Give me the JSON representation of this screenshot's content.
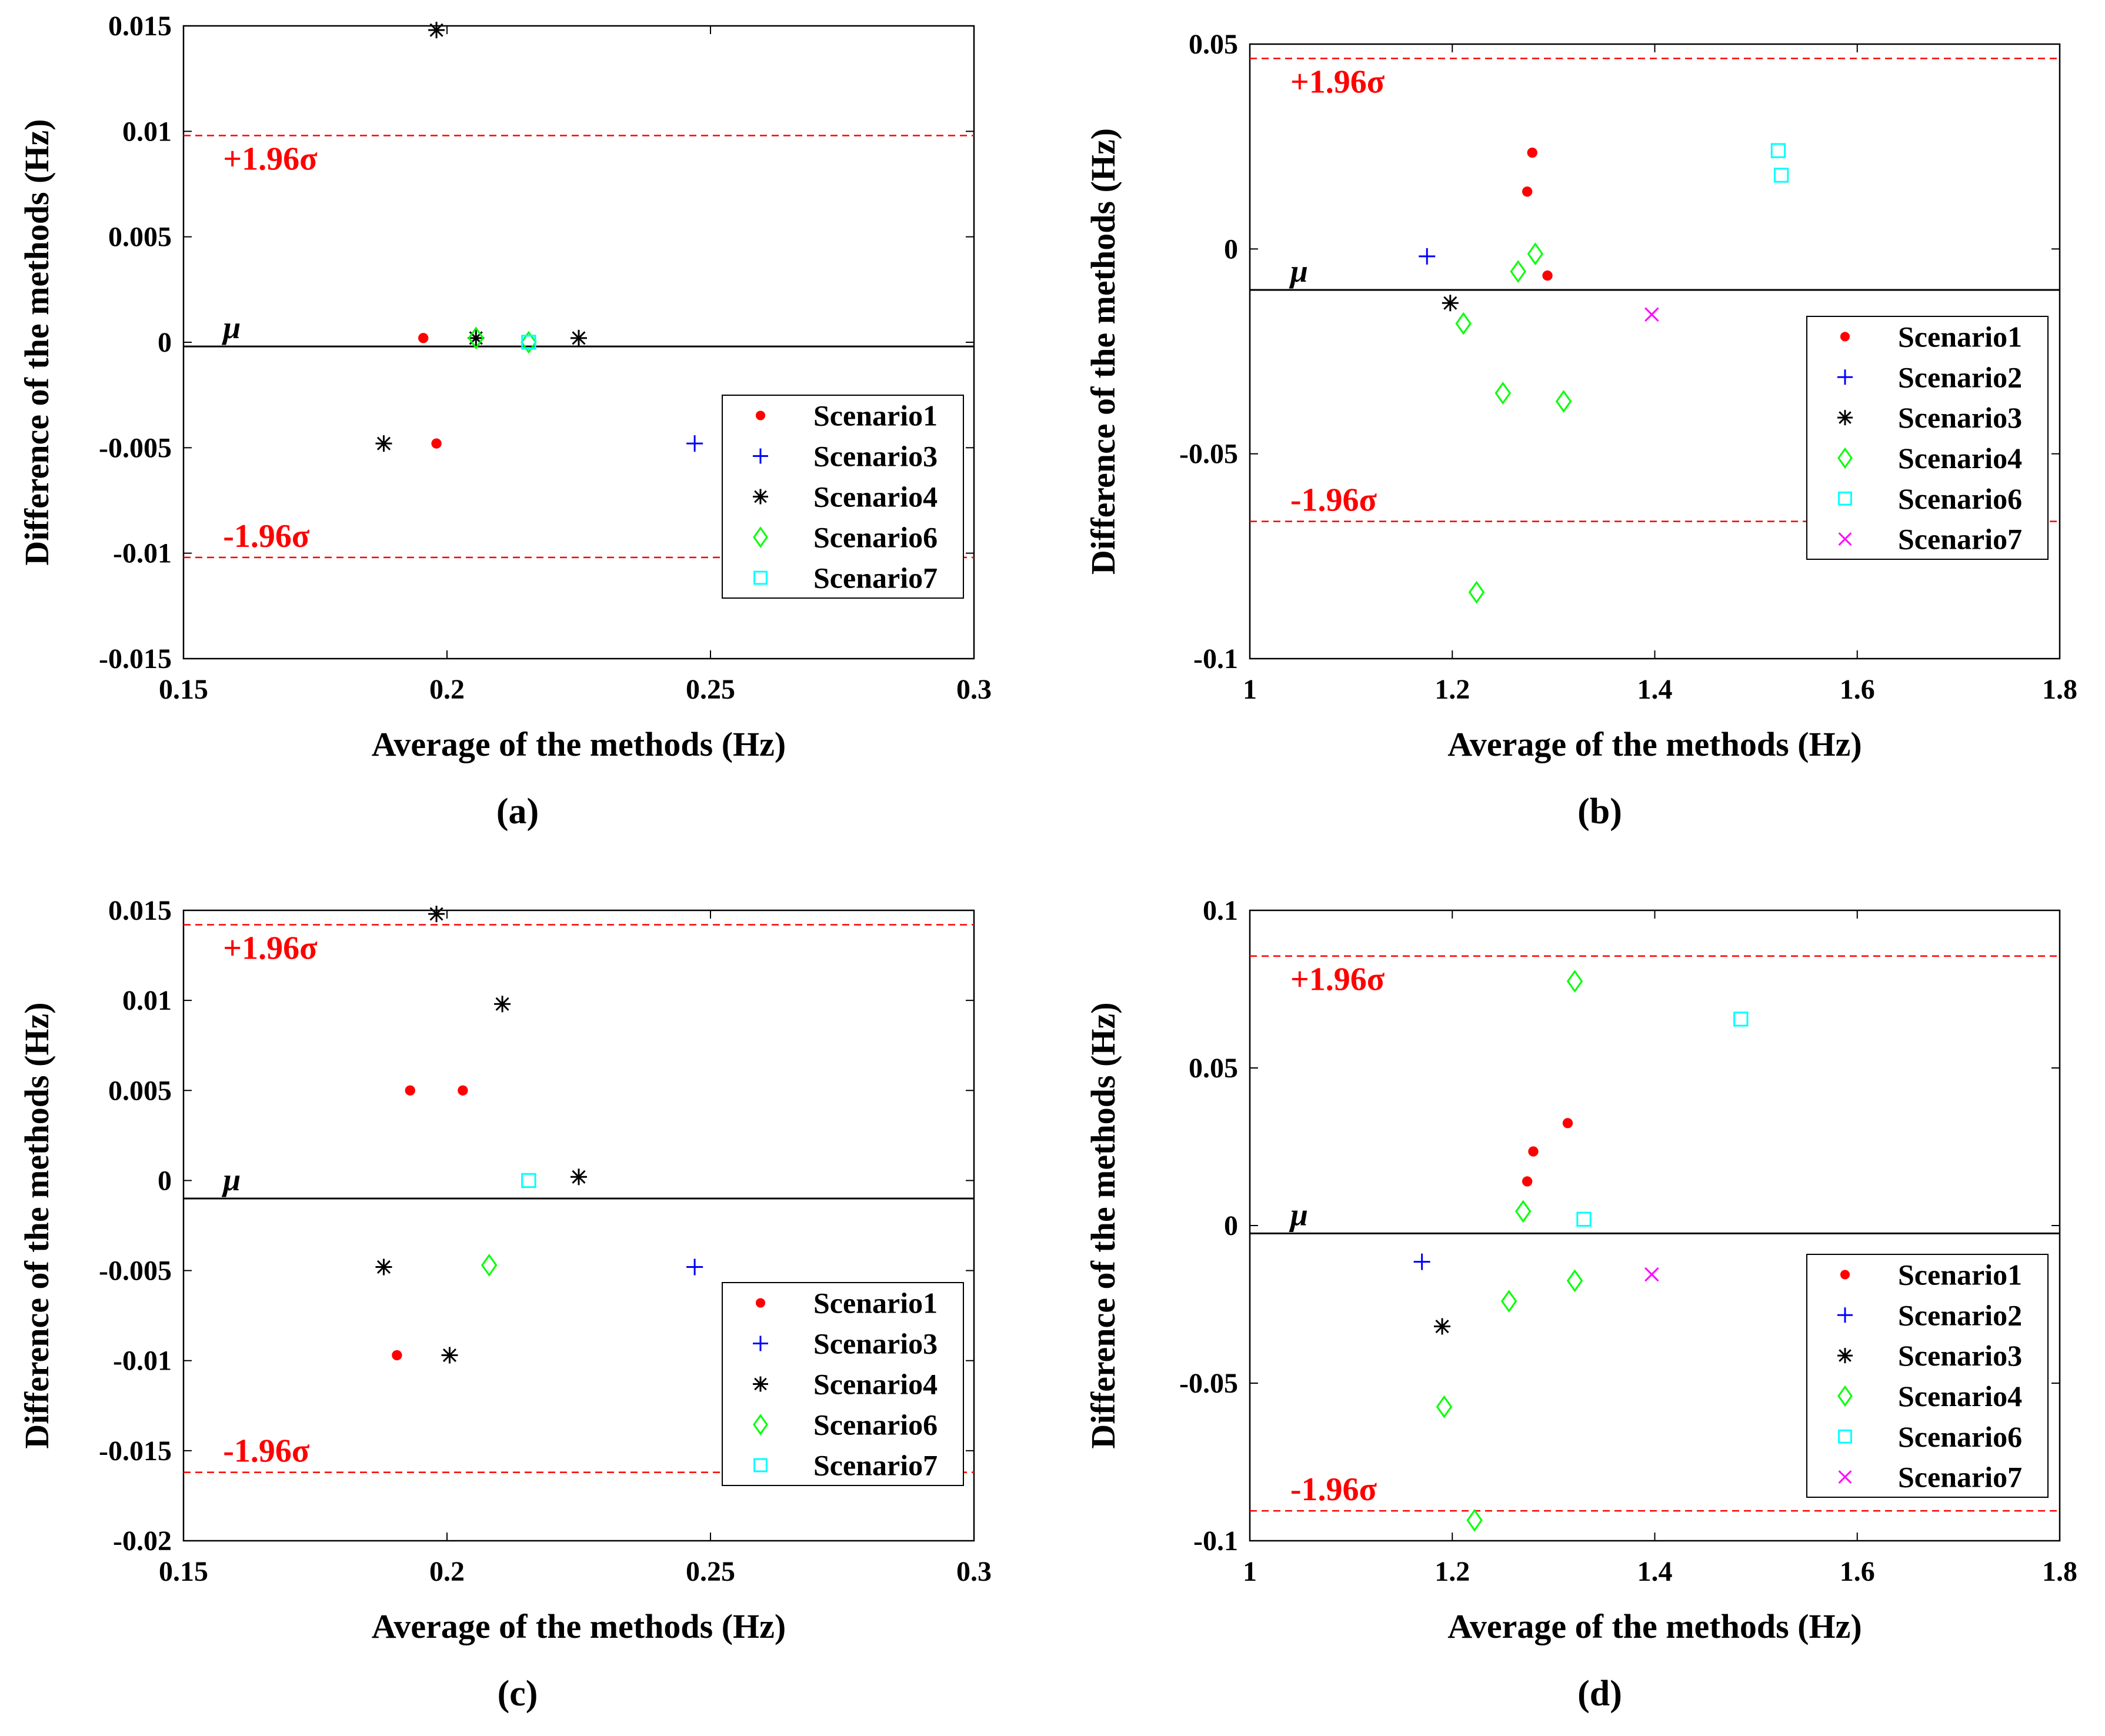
{
  "chart_data": [
    {
      "panel": "(a)",
      "type": "scatter",
      "title": "",
      "xlabel": "Average of the methods (Hz)",
      "ylabel": "Difference of the methods (Hz)",
      "xlim": [
        0.15,
        0.3
      ],
      "ylim": [
        -0.015,
        0.015
      ],
      "xticks": [
        0.15,
        0.2,
        0.25,
        0.3
      ],
      "xtick_labels": [
        "0.15",
        "0.2",
        "0.25",
        "0.3"
      ],
      "yticks": [
        -0.015,
        -0.01,
        -0.005,
        0,
        0.005,
        0.01,
        0.015
      ],
      "ytick_labels": [
        "-0.015",
        "-0.01",
        "-0.005",
        "0",
        "0.005",
        "0.01",
        "0.015"
      ],
      "grid": false,
      "legend_position": "lower-right",
      "mean_label": "μ",
      "upper_label": "+1.96σ",
      "lower_label": "-1.96σ",
      "mean": -0.0002,
      "upper": 0.0098,
      "lower": -0.0102,
      "series": [
        {
          "name": "Scenario1",
          "marker": "dot",
          "color": "#ff0000",
          "x": [
            0.1955,
            0.198
          ],
          "y": [
            0.0002,
            -0.0048
          ]
        },
        {
          "name": "Scenario3",
          "marker": "plus",
          "color": "#0000ff",
          "x": [
            0.247
          ],
          "y": [
            -0.0048
          ]
        },
        {
          "name": "Scenario4",
          "marker": "star",
          "color": "#000000",
          "x": [
            0.198,
            0.188,
            0.2055,
            0.225
          ],
          "y": [
            0.0148,
            -0.0048,
            0.0002,
            0.0002
          ]
        },
        {
          "name": "Scenario6",
          "marker": "diamond",
          "color": "#00ff00",
          "x": [
            0.2055,
            0.2155
          ],
          "y": [
            0.0002,
            0.0
          ]
        },
        {
          "name": "Scenario7",
          "marker": "square",
          "color": "#00ffff",
          "x": [
            0.2155
          ],
          "y": [
            0.0
          ]
        }
      ]
    },
    {
      "panel": "(b)",
      "type": "scatter",
      "title": "",
      "xlabel": "Average of the methods (Hz)",
      "ylabel": "Difference of the methods (Hz)",
      "xlim": [
        1.0,
        1.8
      ],
      "ylim": [
        -0.1,
        0.05
      ],
      "xticks": [
        1.0,
        1.2,
        1.4,
        1.6,
        1.8
      ],
      "xtick_labels": [
        "1",
        "1.2",
        "1.4",
        "1.6",
        "1.8"
      ],
      "yticks": [
        -0.1,
        -0.05,
        0,
        0.05
      ],
      "ytick_labels": [
        "-0.1",
        "-0.05",
        "0",
        "0.05"
      ],
      "grid": false,
      "legend_position": "middle-right",
      "mean_label": "μ",
      "upper_label": "+1.96σ",
      "lower_label": "-1.96σ",
      "mean": -0.01,
      "upper": 0.0465,
      "lower": -0.0665,
      "series": [
        {
          "name": "Scenario1",
          "marker": "dot",
          "color": "#ff0000",
          "x": [
            1.279,
            1.274,
            1.294
          ],
          "y": [
            0.0235,
            0.014,
            -0.0065
          ]
        },
        {
          "name": "Scenario2",
          "marker": "plus",
          "color": "#0000ff",
          "x": [
            1.175
          ],
          "y": [
            -0.0018
          ]
        },
        {
          "name": "Scenario3",
          "marker": "star",
          "color": "#000000",
          "x": [
            1.198
          ],
          "y": [
            -0.0132
          ]
        },
        {
          "name": "Scenario4",
          "marker": "diamond",
          "color": "#00ff00",
          "x": [
            1.282,
            1.265,
            1.211,
            1.25,
            1.31,
            1.224
          ],
          "y": [
            -0.0012,
            -0.0055,
            -0.0182,
            -0.0352,
            -0.0372,
            -0.0838
          ]
        },
        {
          "name": "Scenario6",
          "marker": "square",
          "color": "#00ffff",
          "x": [
            1.522,
            1.525
          ],
          "y": [
            0.024,
            0.018
          ]
        },
        {
          "name": "Scenario7",
          "marker": "cross",
          "color": "#ff00ff",
          "x": [
            1.397
          ],
          "y": [
            -0.016
          ]
        }
      ]
    },
    {
      "panel": "(c)",
      "type": "scatter",
      "title": "",
      "xlabel": "Average of the methods (Hz)",
      "ylabel": "Difference of the methods (Hz)",
      "xlim": [
        0.15,
        0.3
      ],
      "ylim": [
        -0.02,
        0.015
      ],
      "xticks": [
        0.15,
        0.2,
        0.25,
        0.3
      ],
      "xtick_labels": [
        "0.15",
        "0.2",
        "0.25",
        "0.3"
      ],
      "yticks": [
        -0.02,
        -0.015,
        -0.01,
        -0.005,
        0,
        0.005,
        0.01,
        0.015
      ],
      "ytick_labels": [
        "-0.02",
        "-0.015",
        "-0.01",
        "-0.005",
        "0",
        "0.005",
        "0.01",
        "0.015"
      ],
      "grid": false,
      "legend_position": "lower-right",
      "mean_label": "μ",
      "upper_label": "+1.96σ",
      "lower_label": "-1.96σ",
      "mean": -0.001,
      "upper": 0.0142,
      "lower": -0.0162,
      "series": [
        {
          "name": "Scenario1",
          "marker": "dot",
          "color": "#ff0000",
          "x": [
            0.193,
            0.203,
            0.1905
          ],
          "y": [
            0.005,
            0.005,
            -0.0097
          ]
        },
        {
          "name": "Scenario3",
          "marker": "plus",
          "color": "#0000ff",
          "x": [
            0.247
          ],
          "y": [
            -0.0048
          ]
        },
        {
          "name": "Scenario4",
          "marker": "star",
          "color": "#000000",
          "x": [
            0.198,
            0.2105,
            0.225,
            0.188,
            0.2005
          ],
          "y": [
            0.0148,
            0.0098,
            0.0002,
            -0.0048,
            -0.0097
          ]
        },
        {
          "name": "Scenario6",
          "marker": "diamond",
          "color": "#00ff00",
          "x": [
            0.208
          ],
          "y": [
            -0.0047
          ]
        },
        {
          "name": "Scenario7",
          "marker": "square",
          "color": "#00ffff",
          "x": [
            0.2155
          ],
          "y": [
            0.0
          ]
        }
      ]
    },
    {
      "panel": "(d)",
      "type": "scatter",
      "title": "",
      "xlabel": "Average of the methods (Hz)",
      "ylabel": "Difference of the methods (Hz)",
      "xlim": [
        1.0,
        1.8
      ],
      "ylim": [
        -0.1,
        0.1
      ],
      "xticks": [
        1.0,
        1.2,
        1.4,
        1.6,
        1.8
      ],
      "xtick_labels": [
        "1",
        "1.2",
        "1.4",
        "1.6",
        "1.8"
      ],
      "yticks": [
        -0.1,
        -0.05,
        0,
        0.05,
        0.1
      ],
      "ytick_labels": [
        "-0.1",
        "-0.05",
        "0",
        "0.05",
        "0.1"
      ],
      "grid": false,
      "legend_position": "lower-right",
      "mean_label": "μ",
      "upper_label": "+1.96σ",
      "lower_label": "-1.96σ",
      "mean": -0.0025,
      "upper": 0.0855,
      "lower": -0.0905,
      "series": [
        {
          "name": "Scenario1",
          "marker": "dot",
          "color": "#ff0000",
          "x": [
            1.314,
            1.28,
            1.274
          ],
          "y": [
            0.0325,
            0.0235,
            0.014
          ]
        },
        {
          "name": "Scenario2",
          "marker": "plus",
          "color": "#0000ff",
          "x": [
            1.17
          ],
          "y": [
            -0.0115
          ]
        },
        {
          "name": "Scenario3",
          "marker": "star",
          "color": "#000000",
          "x": [
            1.19
          ],
          "y": [
            -0.032
          ]
        },
        {
          "name": "Scenario4",
          "marker": "diamond",
          "color": "#00ff00",
          "x": [
            1.321,
            1.27,
            1.256,
            1.321,
            1.192,
            1.222
          ],
          "y": [
            0.0775,
            0.0045,
            -0.024,
            -0.0175,
            -0.0575,
            -0.0935
          ]
        },
        {
          "name": "Scenario6",
          "marker": "square",
          "color": "#00ffff",
          "x": [
            1.485,
            1.33
          ],
          "y": [
            0.0655,
            0.002
          ]
        },
        {
          "name": "Scenario7",
          "marker": "cross",
          "color": "#ff00ff",
          "x": [
            1.397
          ],
          "y": [
            -0.0155
          ]
        }
      ]
    }
  ]
}
